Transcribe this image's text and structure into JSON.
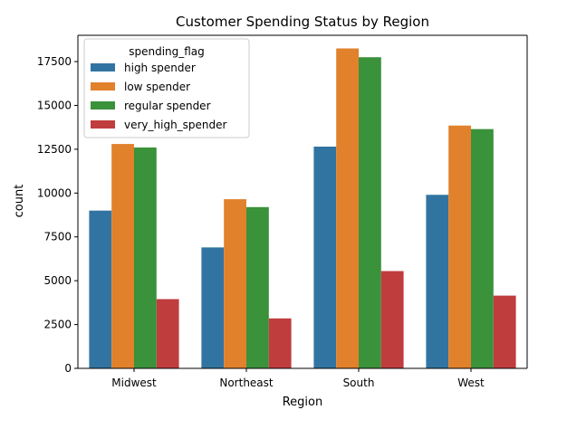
{
  "chart_data": {
    "type": "bar",
    "title": "Customer Spending Status by Region",
    "xlabel": "Region",
    "ylabel": "count",
    "categories": [
      "Midwest",
      "Northeast",
      "South",
      "West"
    ],
    "ylim": [
      0,
      19000
    ],
    "yticks": [
      0,
      2500,
      5000,
      7500,
      10000,
      12500,
      15000,
      17500
    ],
    "ytick_labels": [
      "0",
      "2500",
      "5000",
      "7500",
      "10000",
      "12500",
      "15000",
      "17500"
    ],
    "legend": {
      "title": "spending_flag",
      "position": "top-left"
    },
    "series": [
      {
        "name": "high spender",
        "color": "#3274a1",
        "values": [
          9000,
          6900,
          12650,
          9900
        ]
      },
      {
        "name": "low spender",
        "color": "#e1812c",
        "values": [
          12800,
          9650,
          18250,
          13850
        ]
      },
      {
        "name": "regular spender",
        "color": "#3a923a",
        "values": [
          12600,
          9200,
          17750,
          13650
        ]
      },
      {
        "name": "very_high_spender",
        "color": "#c03d3e",
        "values": [
          3950,
          2850,
          5550,
          4150
        ]
      }
    ]
  }
}
